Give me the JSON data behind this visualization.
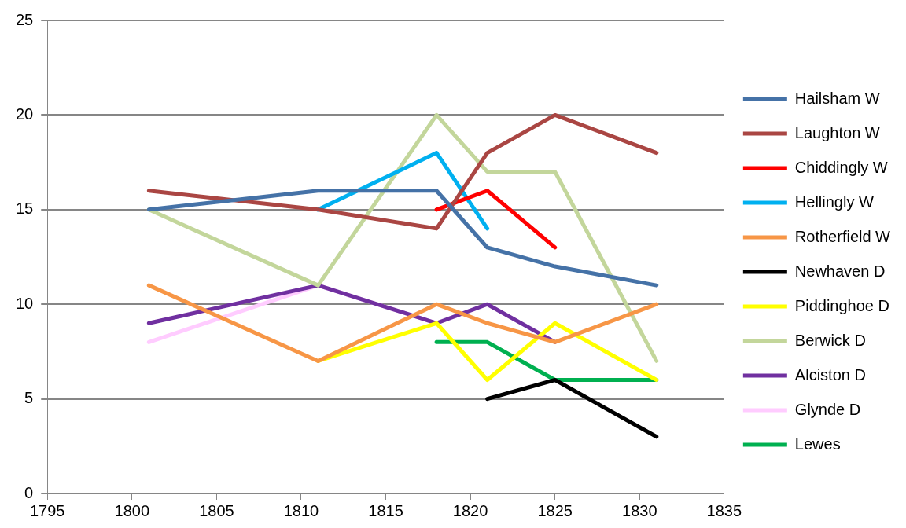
{
  "chart_data": {
    "type": "line",
    "x": [
      1801,
      1811,
      1818,
      1821,
      1825,
      1831
    ],
    "xlim": [
      1795,
      1835
    ],
    "xticks": [
      1795,
      1800,
      1805,
      1810,
      1815,
      1820,
      1825,
      1830,
      1835
    ],
    "ylim": [
      0,
      25
    ],
    "yticks": [
      0,
      5,
      10,
      15,
      20,
      25
    ],
    "grid": "y",
    "legend": "right",
    "marker": "none",
    "line_style": "solid",
    "series": [
      {
        "name": "Hailsham W",
        "color": "#4572a7",
        "values": [
          15,
          16,
          16,
          13,
          12,
          11
        ]
      },
      {
        "name": "Laughton W",
        "color": "#aa4643",
        "values": [
          16,
          15,
          14,
          18,
          20,
          18
        ]
      },
      {
        "name": "Chiddingly W",
        "color": "#ff0000",
        "values": [
          null,
          null,
          15,
          16,
          13,
          null
        ]
      },
      {
        "name": "Hellingly W",
        "color": "#00b0f0",
        "values": [
          null,
          15,
          18,
          14,
          null,
          null
        ]
      },
      {
        "name": "Rotherfield W",
        "color": "#f79646",
        "values": [
          11,
          7,
          10,
          9,
          8,
          10
        ]
      },
      {
        "name": "Newhaven D",
        "color": "#000000",
        "values": [
          null,
          null,
          null,
          5,
          6,
          3
        ]
      },
      {
        "name": "Piddinghoe D",
        "color": "#ffff00",
        "values": [
          null,
          7,
          9,
          6,
          9,
          6
        ]
      },
      {
        "name": "Berwick D",
        "color": "#c3d69b",
        "values": [
          15,
          11,
          20,
          17,
          17,
          7
        ]
      },
      {
        "name": "Alciston D",
        "color": "#7030a0",
        "values": [
          9,
          11,
          9,
          10,
          8,
          null
        ]
      },
      {
        "name": "Glynde D",
        "color": "#ffccff",
        "values": [
          8,
          11,
          9,
          null,
          null,
          null
        ]
      },
      {
        "name": "Lewes",
        "color": "#00b050",
        "values": [
          null,
          null,
          8,
          8,
          6,
          6
        ]
      }
    ]
  }
}
